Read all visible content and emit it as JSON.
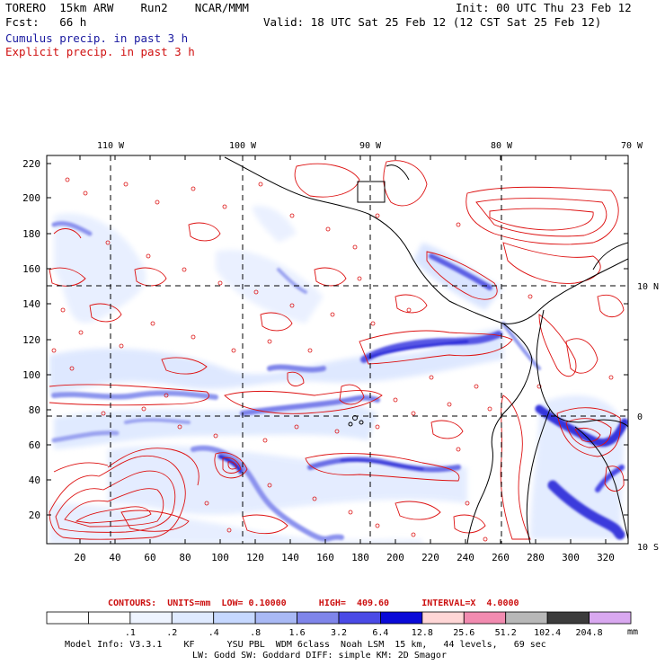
{
  "header": {
    "model": "TORERO  15km ARW    Run2    NCAR/MMM",
    "init": "Init: 00 UTC Thu 23 Feb 12",
    "fcst": "Fcst:   66 h",
    "valid": "Valid: 18 UTC Sat 25 Feb 12 (12 CST Sat 25 Feb 12)",
    "line_cumulus": "Cumulus precip. in past 3 h",
    "line_explicit": "Explicit precip. in past 3 h"
  },
  "axes": {
    "top_lon": [
      "110 W",
      "100 W",
      "90 W",
      "80 W",
      "70 W"
    ],
    "right_lat": [
      "10 N",
      "0",
      "10 S"
    ],
    "left_y": [
      "220",
      "200",
      "180",
      "160",
      "140",
      "120",
      "100",
      "80",
      "60",
      "40",
      "20"
    ],
    "bottom_x": [
      "20",
      "40",
      "60",
      "80",
      "100",
      "120",
      "140",
      "160",
      "180",
      "200",
      "220",
      "240",
      "260",
      "280",
      "300",
      "320"
    ]
  },
  "contour_info": {
    "label": "CONTOURS:  UNITS=mm  LOW= 0.10000      HIGH=  409.60      INTERVAL=X  4.0000"
  },
  "colorbar": {
    "labels": [
      ".1",
      ".2",
      ".4",
      ".8",
      "1.6",
      "3.2",
      "6.4",
      "12.8",
      "25.6",
      "51.2",
      "102.4",
      "204.8"
    ],
    "unit": "mm",
    "colors": [
      "#ffffff",
      "#ffffff",
      "#eef4ff",
      "#dfeaff",
      "#c6d8ff",
      "#a9b9f5",
      "#7f85ea",
      "#4a4ae6",
      "#0a0ad8",
      "#ffd6d6",
      "#f28bb0",
      "#b8b8b8",
      "#3c3c3c",
      "#d9a8f0"
    ]
  },
  "footer": {
    "line1": "Model Info: V3.3.1    KF      YSU PBL  WDM 6class  Noah LSM  15 km,   44 levels,   69 sec",
    "line2": "LW: Godd SW: Goddard DIFF: simple KM: 2D Smagor"
  }
}
